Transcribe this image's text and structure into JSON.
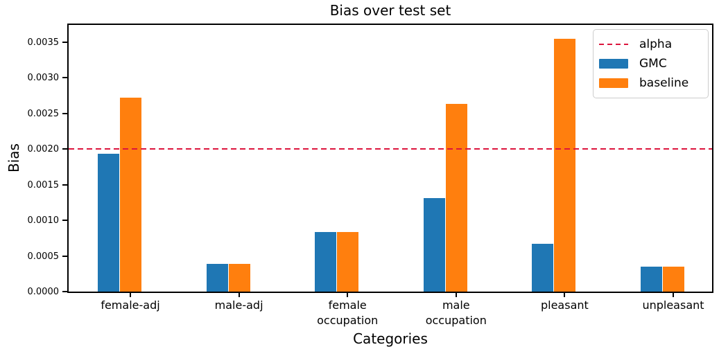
{
  "chart_data": {
    "type": "bar",
    "title": "Bias over test set",
    "xlabel": "Categories",
    "ylabel": "Bias",
    "categories": [
      "female-adj",
      "male-adj",
      "female\noccupation",
      "male\noccupation",
      "pleasant",
      "unpleasant"
    ],
    "series": [
      {
        "name": "GMC",
        "color": "#1f77b4",
        "values": [
          0.00193,
          0.00039,
          0.00084,
          0.00131,
          0.00067,
          0.00035
        ]
      },
      {
        "name": "baseline",
        "color": "#ff7f0e",
        "values": [
          0.00272,
          0.00039,
          0.00084,
          0.00263,
          0.00355,
          0.00035
        ]
      }
    ],
    "alpha_line": {
      "label": "alpha",
      "value": 0.002,
      "color": "#dc143c",
      "style": "dashed"
    },
    "ylim": [
      0,
      0.00374
    ],
    "yticks": [
      0.0,
      0.0005,
      0.001,
      0.0015,
      0.002,
      0.0025,
      0.003,
      0.0035
    ],
    "ytick_labels": [
      "0.0000",
      "0.0005",
      "0.0010",
      "0.0015",
      "0.0020",
      "0.0025",
      "0.0030",
      "0.0035"
    ],
    "legend_entries": [
      "alpha",
      "GMC",
      "baseline"
    ],
    "legend_position": "upper right",
    "grid": false
  },
  "colors": {
    "gmc": "#1f77b4",
    "baseline": "#ff7f0e",
    "alpha": "#dc143c",
    "spine": "#000000",
    "background": "#ffffff"
  }
}
